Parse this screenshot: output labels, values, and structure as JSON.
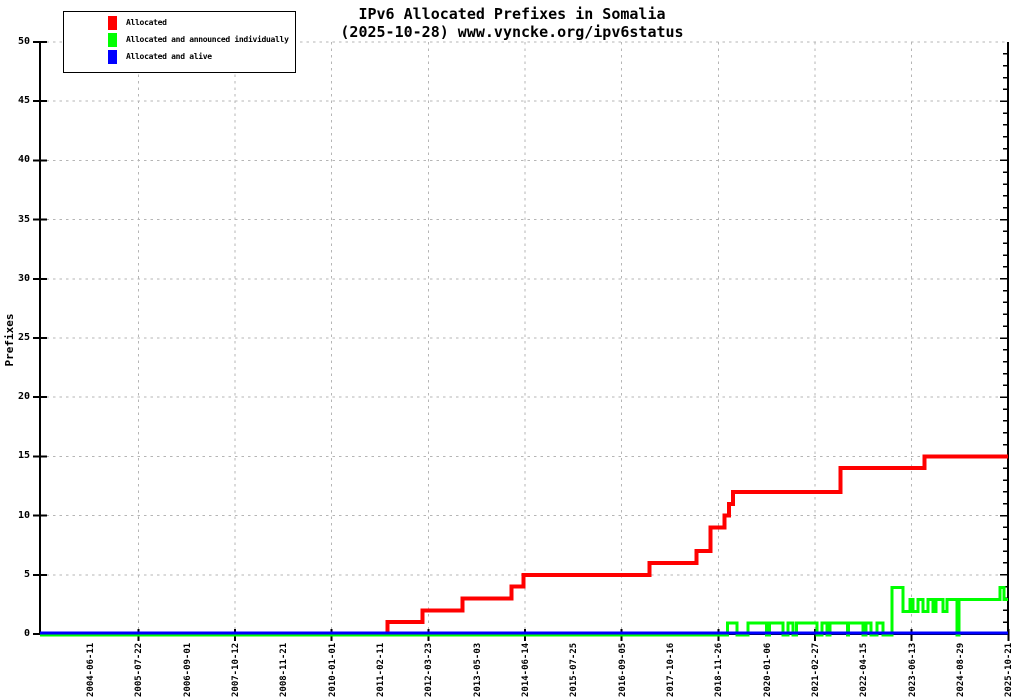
{
  "title": {
    "line1": "IPv6 Allocated Prefixes in Somalia",
    "line2": "(2025-10-28) www.vyncke.org/ipv6status"
  },
  "legend": {
    "items": [
      {
        "label": "Allocated",
        "color": "#ff0000"
      },
      {
        "label": "Allocated and announced individually",
        "color": "#00ff00"
      },
      {
        "label": "Allocated and alive",
        "color": "#0000ff"
      }
    ]
  },
  "chart_data": {
    "type": "line",
    "subtype": "step-after",
    "title": "IPv6 Allocated Prefixes in Somalia",
    "subtitle": "(2025-10-28) www.vyncke.org/ipv6status",
    "grid": "dashed-gray",
    "legend_position": "top-left-boxed",
    "y_axis": {
      "label": "Prefixes",
      "min": 0,
      "max": 50,
      "tick_step": 5
    },
    "x_axis": {
      "type": "time",
      "start": "2003-04-15",
      "end": "2025-10-24",
      "ticks": [
        "2004-06-11",
        "2005-07-22",
        "2006-09-01",
        "2007-10-12",
        "2008-11-21",
        "2010-01-01",
        "2011-02-11",
        "2012-03-23",
        "2013-05-03",
        "2014-06-14",
        "2015-07-25",
        "2016-09-05",
        "2017-10-16",
        "2018-11-26",
        "2020-01-06",
        "2021-02-27",
        "2022-04-15",
        "2023-06-13",
        "2024-08-29",
        "2025-10-21"
      ],
      "gridlines_at_tick_indices": [
        1,
        3,
        5,
        7,
        9,
        11,
        13,
        15,
        17,
        19
      ]
    },
    "series": [
      {
        "name": "Allocated",
        "color": "#ff0000",
        "width": 4,
        "points": [
          [
            "2003-04-15",
            0
          ],
          [
            "2011-05-15",
            1
          ],
          [
            "2012-03-07",
            2
          ],
          [
            "2013-02-10",
            3
          ],
          [
            "2014-04-02",
            4
          ],
          [
            "2014-07-13",
            5
          ],
          [
            "2017-06-17",
            6
          ],
          [
            "2018-07-21",
            7
          ],
          [
            "2018-11-15",
            9
          ],
          [
            "2019-03-16",
            10
          ],
          [
            "2019-04-25",
            11
          ],
          [
            "2019-05-25",
            12
          ],
          [
            "2021-11-25",
            14
          ],
          [
            "2023-11-08",
            15
          ]
        ]
      },
      {
        "name": "Allocated and announced individually",
        "color": "#00ff00",
        "width": 3,
        "points": [
          [
            "2003-04-15",
            0
          ],
          [
            "2019-04-11",
            1
          ],
          [
            "2019-06-30",
            0
          ],
          [
            "2019-10-01",
            1
          ],
          [
            "2020-03-05",
            0
          ],
          [
            "2020-04-02",
            1
          ],
          [
            "2020-07-25",
            0
          ],
          [
            "2020-09-06",
            1
          ],
          [
            "2020-10-18",
            0
          ],
          [
            "2020-11-15",
            1
          ],
          [
            "2021-05-09",
            0
          ],
          [
            "2021-06-20",
            1
          ],
          [
            "2021-08-02",
            0
          ],
          [
            "2021-08-27",
            1
          ],
          [
            "2022-01-25",
            0
          ],
          [
            "2022-02-03",
            1
          ],
          [
            "2022-06-04",
            0
          ],
          [
            "2022-06-29",
            1
          ],
          [
            "2022-08-11",
            0
          ],
          [
            "2022-10-01",
            1
          ],
          [
            "2022-11-21",
            0
          ],
          [
            "2023-02-05",
            4
          ],
          [
            "2023-05-10",
            2
          ],
          [
            "2023-07-08",
            3
          ],
          [
            "2023-08-02",
            2
          ],
          [
            "2023-09-14",
            3
          ],
          [
            "2023-10-27",
            2
          ],
          [
            "2023-12-08",
            3
          ],
          [
            "2024-01-20",
            2
          ],
          [
            "2024-02-14",
            3
          ],
          [
            "2024-04-14",
            2
          ],
          [
            "2024-05-18",
            3
          ],
          [
            "2024-08-11",
            0
          ],
          [
            "2024-08-28",
            3
          ],
          [
            "2025-08-10",
            4
          ],
          [
            "2025-09-13",
            3
          ]
        ]
      },
      {
        "name": "Allocated and alive",
        "color": "#0000ff",
        "width": 3,
        "points": [
          [
            "2003-04-15",
            0
          ]
        ]
      }
    ]
  }
}
